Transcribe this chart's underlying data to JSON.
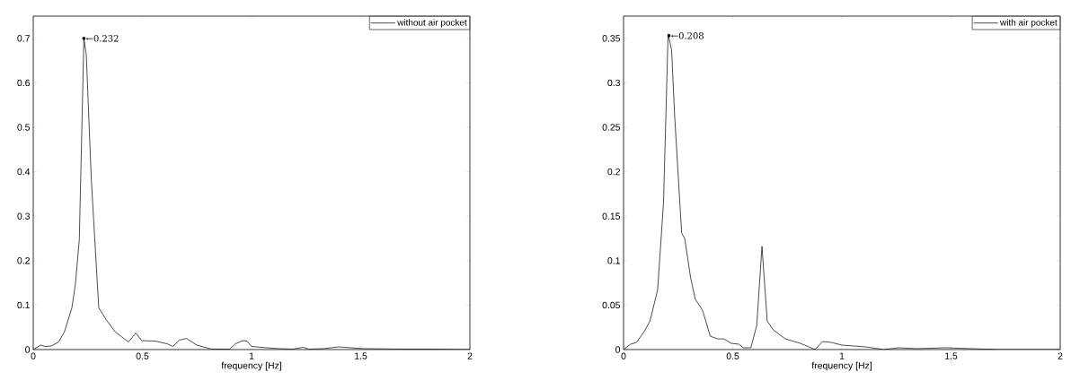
{
  "chart_data": [
    {
      "type": "line",
      "xlabel": "frequency [Hz]",
      "xlim": [
        0,
        2
      ],
      "ylim": [
        0,
        0.75
      ],
      "xticks": [
        0,
        0.5,
        1,
        1.5,
        2
      ],
      "yticks": [
        0,
        0.1,
        0.2,
        0.3,
        0.4,
        0.5,
        0.6,
        0.7
      ],
      "legend": "top right",
      "marker": "none",
      "line_style": "solid",
      "annotations": [
        {
          "text": "←0.232",
          "x": 0.232,
          "y": 0.7
        }
      ],
      "series": [
        {
          "name": "without air pocket",
          "color": "#000000",
          "x": [
            0,
            0.034,
            0.054,
            0.082,
            0.116,
            0.143,
            0.177,
            0.193,
            0.211,
            0.232,
            0.243,
            0.266,
            0.3,
            0.334,
            0.375,
            0.436,
            0.47,
            0.497,
            0.559,
            0.613,
            0.64,
            0.668,
            0.702,
            0.749,
            0.817,
            0.9,
            0.926,
            0.959,
            0.979,
            1.0,
            1.069,
            1.124,
            1.19,
            1.236,
            1.261,
            1.33,
            1.398,
            1.453,
            1.508,
            1.7,
            1.835,
            2.0
          ],
          "values": [
            0,
            0.01,
            0.007,
            0.008,
            0.017,
            0.04,
            0.094,
            0.147,
            0.248,
            0.7,
            0.663,
            0.382,
            0.094,
            0.067,
            0.04,
            0.017,
            0.037,
            0.02,
            0.019,
            0.013,
            0.007,
            0.021,
            0.025,
            0.01,
            0.001,
            0.001,
            0.013,
            0.02,
            0.019,
            0.007,
            0.004,
            0.002,
            0.001,
            0.005,
            0.001,
            0.002,
            0.006,
            0.004,
            0.002,
            0.001,
            0.001,
            0
          ]
        }
      ]
    },
    {
      "type": "line",
      "xlabel": "frequency [Hz]",
      "xlim": [
        0,
        2
      ],
      "ylim": [
        0,
        0.375
      ],
      "xticks": [
        0,
        0.5,
        1,
        1.5,
        2
      ],
      "yticks": [
        0,
        0.05,
        0.1,
        0.15,
        0.2,
        0.25,
        0.3,
        0.35
      ],
      "legend": "top right",
      "marker": "none",
      "line_style": "solid",
      "annotations": [
        {
          "text": "←0.208",
          "x": 0.208,
          "y": 0.353
        }
      ],
      "series": [
        {
          "name": "with air pocket",
          "color": "#000000",
          "x": [
            0,
            0.032,
            0.059,
            0.094,
            0.121,
            0.156,
            0.183,
            0.204,
            0.22,
            0.234,
            0.266,
            0.28,
            0.307,
            0.328,
            0.362,
            0.397,
            0.431,
            0.459,
            0.493,
            0.528,
            0.548,
            0.583,
            0.61,
            0.634,
            0.658,
            0.686,
            0.741,
            0.81,
            0.877,
            0.911,
            0.952,
            1.0,
            1.11,
            1.192,
            1.26,
            1.342,
            1.479,
            1.589,
            1.726,
            2.0
          ],
          "values": [
            0,
            0.006,
            0.008,
            0.02,
            0.032,
            0.067,
            0.165,
            0.355,
            0.337,
            0.263,
            0.131,
            0.125,
            0.081,
            0.057,
            0.044,
            0.015,
            0.012,
            0.012,
            0.007,
            0.006,
            0.002,
            0.002,
            0.027,
            0.116,
            0.032,
            0.022,
            0.012,
            0.007,
            0,
            0.009,
            0.008,
            0.005,
            0.003,
            0,
            0.002,
            0.001,
            0.002,
            0.001,
            0,
            0
          ]
        }
      ]
    }
  ]
}
